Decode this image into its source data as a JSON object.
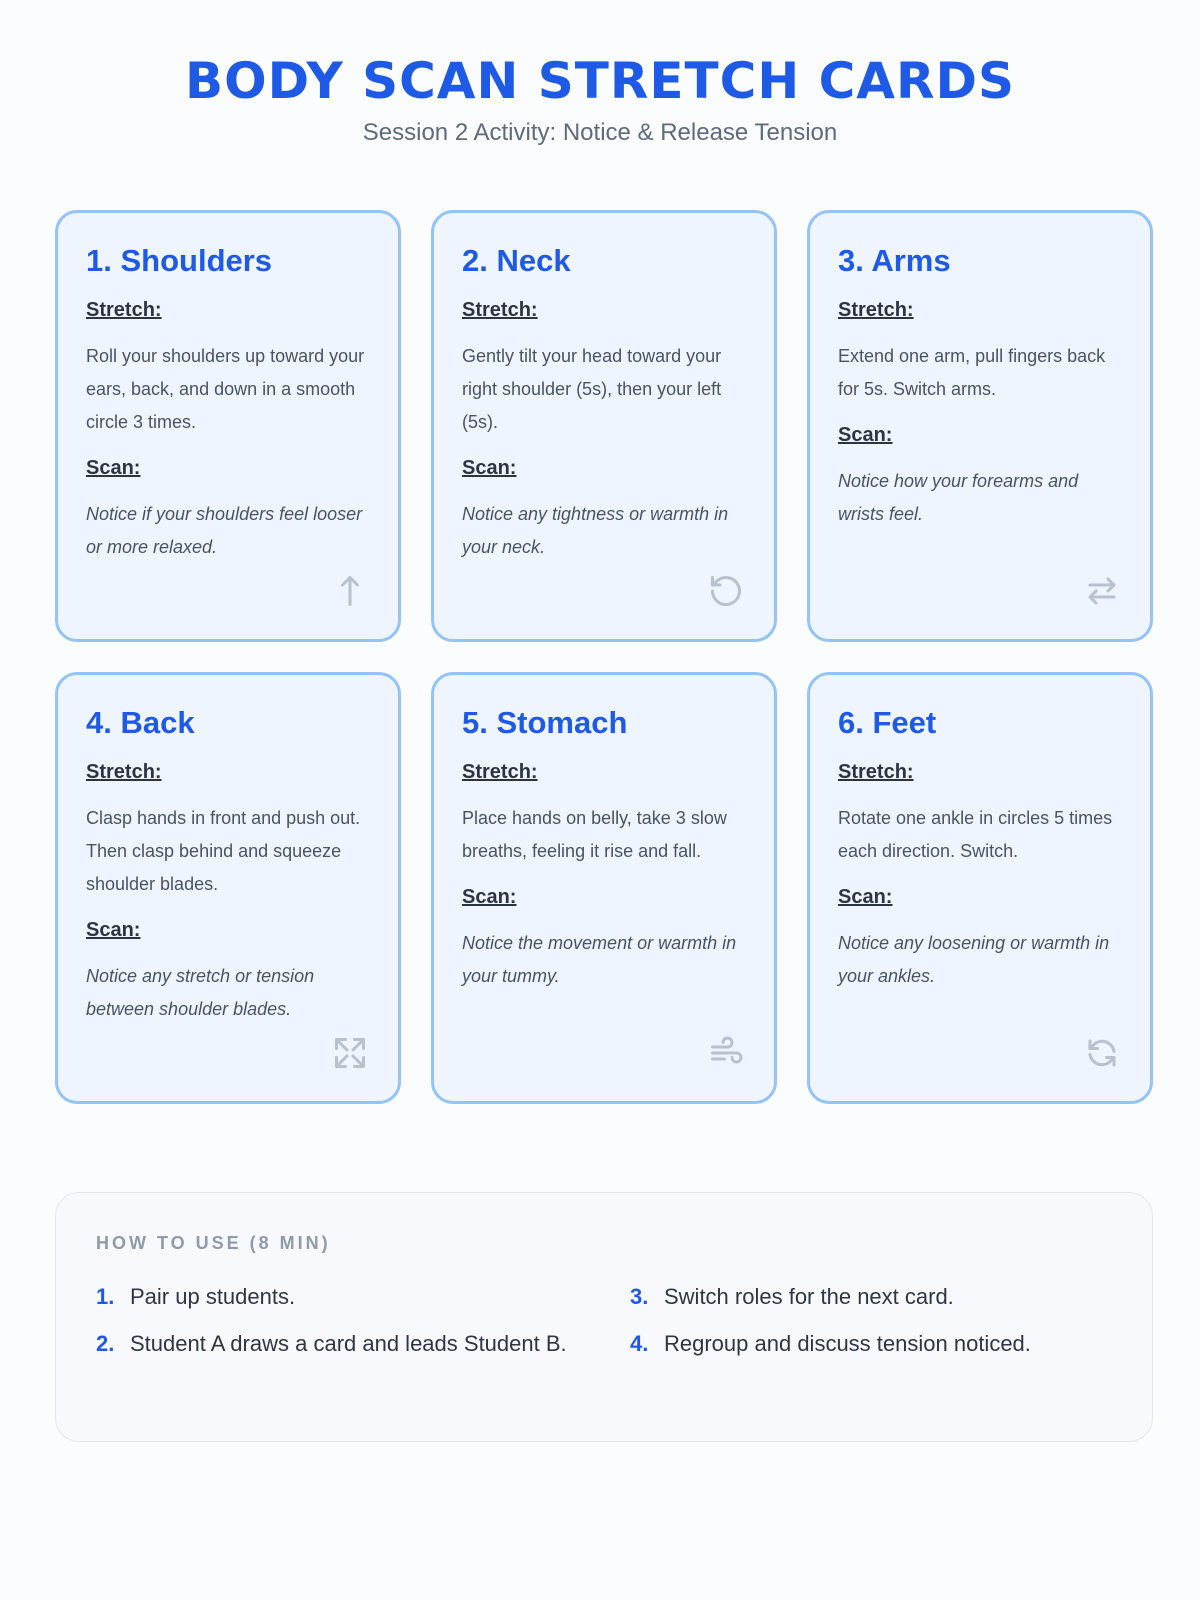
{
  "header": {
    "title": "BODY SCAN STRETCH CARDS",
    "subtitle": "Session 2 Activity: Notice & Release Tension"
  },
  "labels": {
    "stretch": "Stretch:",
    "scan": "Scan:"
  },
  "cards": [
    {
      "title": "1. Shoulders",
      "stretch": "Roll your shoulders up toward your ears, back, and down in a smooth circle 3 times.",
      "scan": "Notice if your shoulders feel looser or more relaxed.",
      "icon": "arrow-up-icon"
    },
    {
      "title": "2. Neck",
      "stretch": "Gently tilt your head toward your right shoulder (5s), then your left (5s).",
      "scan": "Notice any tightness or warmth in your neck.",
      "icon": "rotate-ccw-icon"
    },
    {
      "title": "3. Arms",
      "stretch": "Extend one arm, pull fingers back for 5s. Switch arms.",
      "scan": "Notice how your forearms and wrists feel.",
      "icon": "arrows-left-right-icon"
    },
    {
      "title": "4. Back",
      "stretch": "Clasp hands in front and push out. Then clasp behind and squeeze shoulder blades.",
      "scan": "Notice any stretch or tension between shoulder blades.",
      "icon": "expand-icon"
    },
    {
      "title": "5. Stomach",
      "stretch": "Place hands on belly, take 3 slow breaths, feeling it rise and fall.",
      "scan": "Notice the movement or warmth in your tummy.",
      "icon": "wind-icon"
    },
    {
      "title": "6. Feet",
      "stretch": "Rotate one ankle in circles 5 times each direction. Switch.",
      "scan": "Notice any loosening or warmth in your ankles.",
      "icon": "refresh-icon"
    }
  ],
  "howto": {
    "title": "HOW TO USE (8 MIN)",
    "steps": [
      {
        "num": "1.",
        "text": "Pair up students."
      },
      {
        "num": "3.",
        "text": "Switch roles for the next card."
      },
      {
        "num": "2.",
        "text": "Student A draws a card and leads Student B."
      },
      {
        "num": "4.",
        "text": "Regroup and discuss tension noticed."
      }
    ]
  },
  "colors": {
    "accent": "#1f5ae6",
    "card_border": "#93c3f8",
    "card_bg": "#eef5ff"
  }
}
